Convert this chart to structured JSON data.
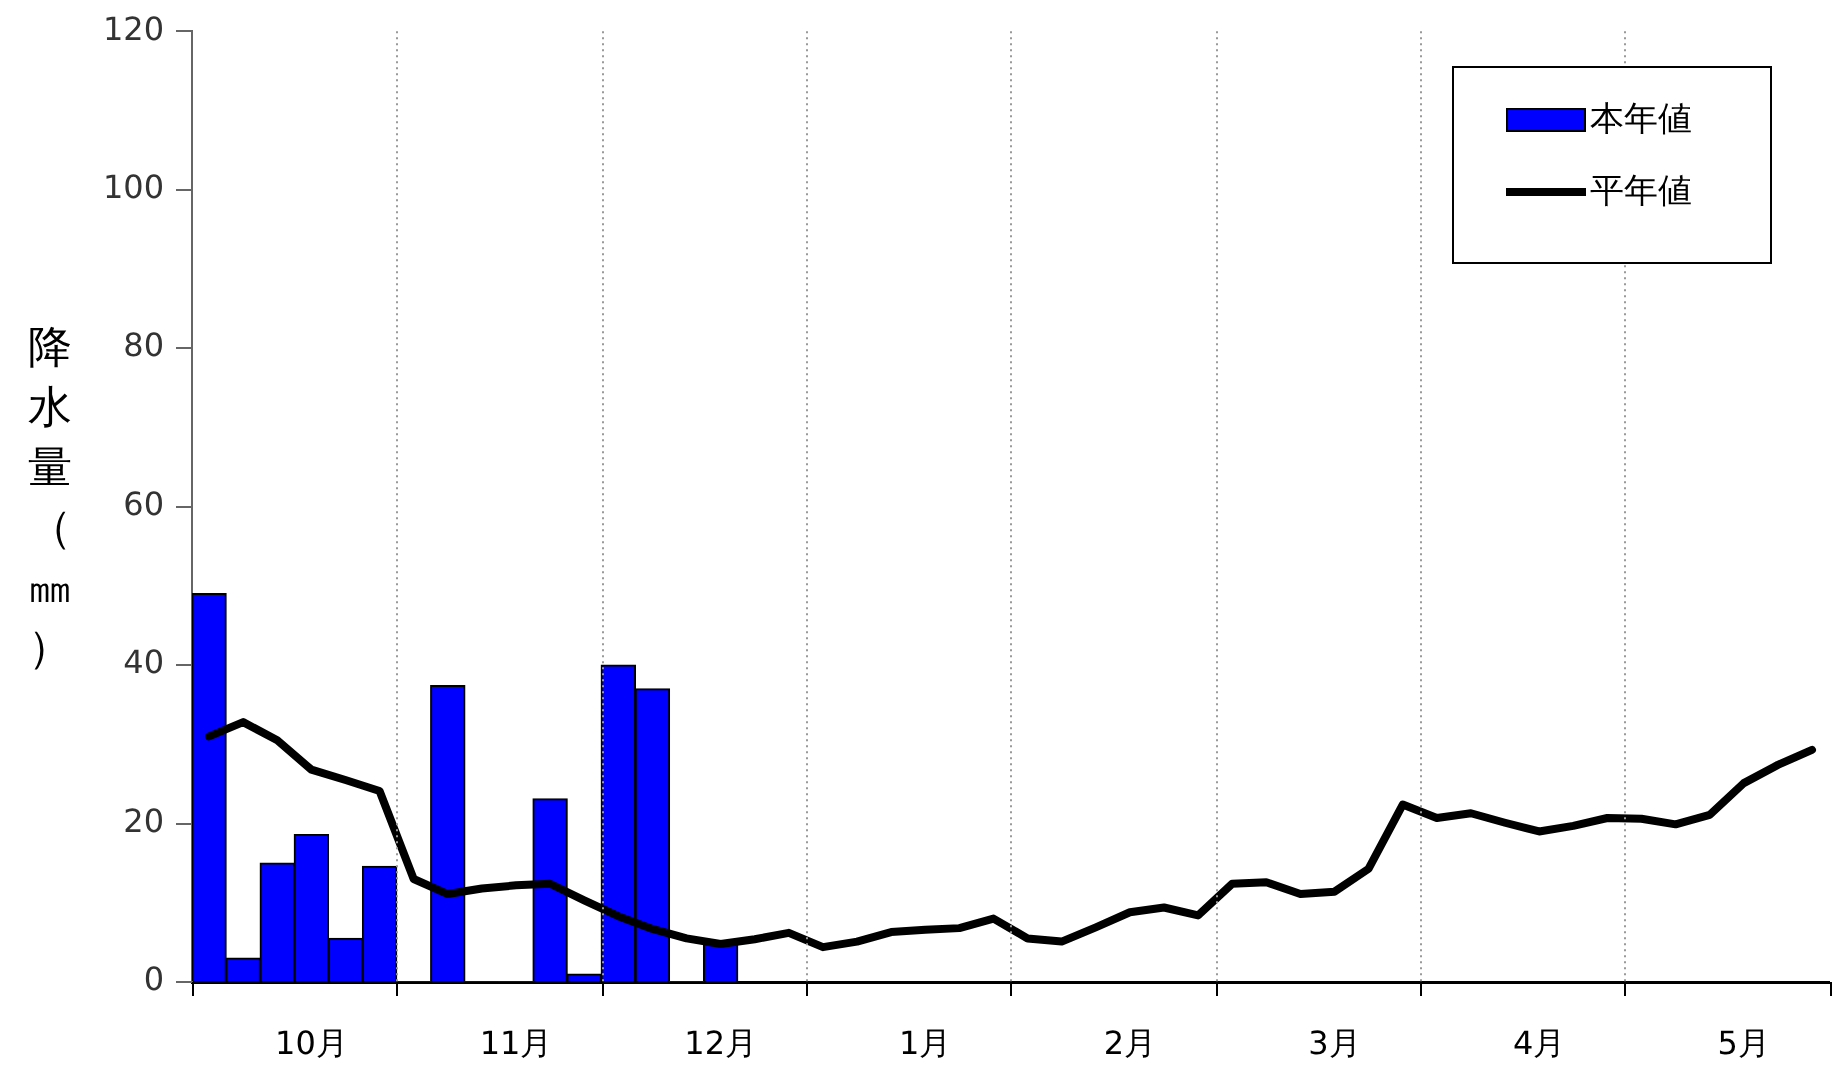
{
  "chart_data": {
    "type": "bar",
    "ylabel": "降水量（㎜）",
    "categories": [
      null,
      null,
      null,
      "10月",
      null,
      null,
      null,
      null,
      null,
      "11月",
      null,
      null,
      null,
      null,
      null,
      "12月",
      null,
      null,
      null,
      null,
      null,
      "1月",
      null,
      null,
      null,
      null,
      null,
      "2月",
      null,
      null,
      null,
      null,
      null,
      "3月",
      null,
      null,
      null,
      null,
      null,
      "4月",
      null,
      null,
      null,
      null,
      null,
      "5月",
      null,
      null
    ],
    "series": [
      {
        "name": "本年値",
        "color": "#0000ff",
        "values": [
          49,
          3,
          15,
          18.6,
          5.5,
          14.6,
          0,
          37.4,
          0,
          0,
          23.1,
          1,
          40,
          37,
          0,
          4.8,
          null,
          null,
          null,
          null,
          null,
          null,
          null,
          null,
          null,
          null,
          null,
          null,
          null,
          null,
          null,
          null,
          null,
          null,
          null,
          null,
          null,
          null,
          null,
          null,
          null,
          null,
          null,
          null,
          null,
          null,
          null,
          null
        ]
      },
      {
        "name": "平年値",
        "type": "line",
        "color": "#000000",
        "values": [
          31,
          32.8,
          30.5,
          26.8,
          25.5,
          24.1,
          13,
          11.1,
          11.8,
          12.2,
          12.4,
          10.3,
          8.3,
          6.7,
          5.5,
          4.8,
          5.4,
          6.2,
          4.4,
          5.1,
          6.3,
          6.6,
          6.8,
          8,
          5.5,
          5.1,
          6.9,
          8.8,
          9.4,
          8.4,
          12.4,
          12.6,
          11.1,
          11.4,
          14.3,
          22.4,
          20.7,
          21.3,
          20.1,
          19,
          19.7,
          20.7,
          20.6,
          19.9,
          21.1,
          25.1,
          27.4,
          29.3
        ]
      }
    ],
    "ylim": [
      0,
      120
    ],
    "yticks": [
      0,
      20,
      40,
      60,
      80,
      100,
      120
    ],
    "grid": "x",
    "legend": "top right",
    "marker": "none",
    "line_style": "solid"
  }
}
